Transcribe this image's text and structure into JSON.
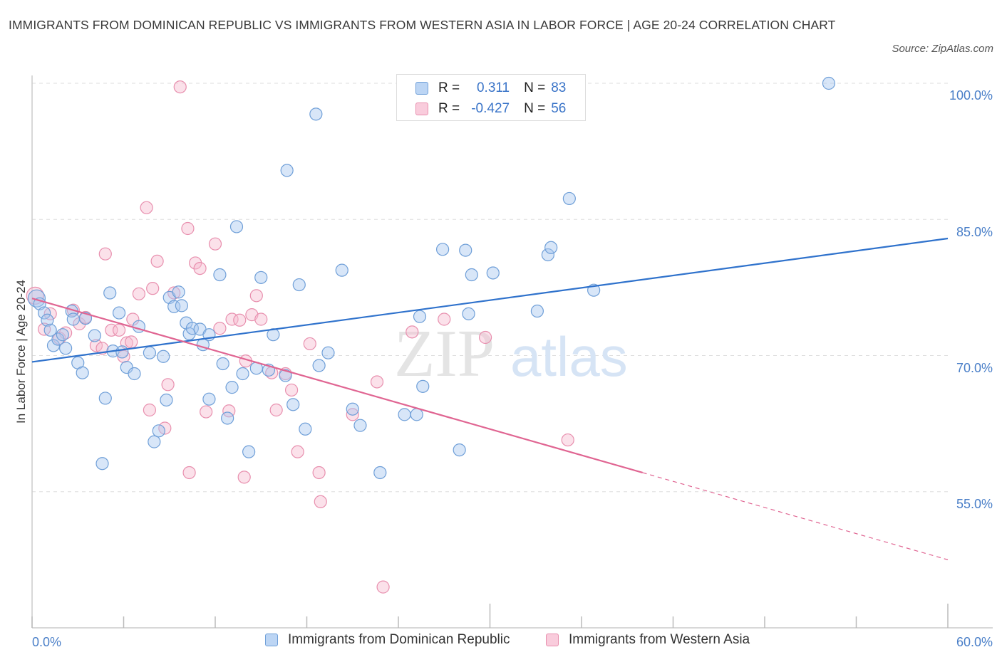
{
  "title": "IMMIGRANTS FROM DOMINICAN REPUBLIC VS IMMIGRANTS FROM WESTERN ASIA IN LABOR FORCE | AGE 20-24 CORRELATION CHART",
  "source": "Source: ZipAtlas.com",
  "watermark": {
    "zip": "ZIP",
    "atlas": "atlas"
  },
  "legend": {
    "r_label": "R =",
    "n_label": "N =",
    "series1": {
      "r": "0.311",
      "n": "83"
    },
    "series2": {
      "r": "-0.427",
      "n": "56"
    }
  },
  "colors": {
    "blue_fill": "#a9c8ef",
    "blue_stroke": "#6f9fd8",
    "blue_line": "#2f72cc",
    "pink_fill": "#f6bdd0",
    "pink_stroke": "#e88fae",
    "pink_line": "#e06592",
    "grid": "#dddddd",
    "axis_text": "#4a7fc8"
  },
  "chart_data": {
    "type": "scatter",
    "xlabel": "",
    "ylabel": "In Labor Force | Age 20-24",
    "xlim": [
      0,
      60
    ],
    "ylim": [
      40,
      100
    ],
    "x_tick_labels": [
      "0.0%",
      "60.0%"
    ],
    "y_tick_labels": [
      "100.0%",
      "85.0%",
      "70.0%",
      "55.0%"
    ],
    "y_ticks": [
      100,
      85,
      70,
      55
    ],
    "grid": true,
    "legend_position": "bottom",
    "series": [
      {
        "name": "Immigrants from Dominican Republic",
        "color": "blue",
        "trend": {
          "x0": 0,
          "y0": 69.3,
          "x1": 60,
          "y1": 82.9
        },
        "points": [
          [
            0.3,
            76.3
          ],
          [
            0.5,
            75.7
          ],
          [
            0.8,
            74.7
          ],
          [
            1.0,
            73.9
          ],
          [
            1.2,
            72.8
          ],
          [
            1.4,
            71.1
          ],
          [
            1.7,
            71.8
          ],
          [
            2.0,
            72.3
          ],
          [
            2.2,
            70.8
          ],
          [
            2.6,
            74.9
          ],
          [
            2.7,
            74.0
          ],
          [
            3.0,
            69.2
          ],
          [
            3.3,
            68.1
          ],
          [
            3.5,
            74.1
          ],
          [
            4.1,
            72.2
          ],
          [
            4.8,
            65.3
          ],
          [
            4.6,
            58.1
          ],
          [
            5.1,
            76.9
          ],
          [
            5.3,
            70.5
          ],
          [
            5.7,
            74.7
          ],
          [
            5.9,
            70.4
          ],
          [
            6.2,
            68.7
          ],
          [
            6.7,
            68.0
          ],
          [
            7.0,
            73.2
          ],
          [
            7.7,
            70.3
          ],
          [
            8.0,
            60.5
          ],
          [
            8.3,
            61.7
          ],
          [
            8.6,
            69.9
          ],
          [
            8.8,
            65.1
          ],
          [
            9.0,
            76.4
          ],
          [
            9.3,
            75.4
          ],
          [
            9.6,
            77.0
          ],
          [
            9.8,
            75.5
          ],
          [
            10.1,
            73.6
          ],
          [
            10.3,
            72.4
          ],
          [
            10.5,
            73.0
          ],
          [
            11.0,
            72.9
          ],
          [
            11.2,
            71.2
          ],
          [
            11.6,
            72.3
          ],
          [
            11.6,
            65.2
          ],
          [
            12.3,
            78.9
          ],
          [
            12.5,
            69.1
          ],
          [
            12.8,
            63.1
          ],
          [
            13.1,
            66.5
          ],
          [
            13.4,
            84.2
          ],
          [
            13.8,
            68.0
          ],
          [
            14.2,
            59.4
          ],
          [
            14.7,
            68.6
          ],
          [
            15.0,
            78.6
          ],
          [
            15.5,
            68.4
          ],
          [
            15.8,
            72.3
          ],
          [
            16.6,
            67.8
          ],
          [
            16.7,
            90.4
          ],
          [
            17.1,
            64.6
          ],
          [
            17.5,
            77.8
          ],
          [
            17.9,
            61.9
          ],
          [
            18.6,
            96.6
          ],
          [
            18.8,
            68.9
          ],
          [
            19.4,
            70.3
          ],
          [
            20.3,
            79.4
          ],
          [
            21.0,
            64.1
          ],
          [
            21.5,
            62.3
          ],
          [
            22.8,
            57.1
          ],
          [
            24.4,
            63.5
          ],
          [
            25.2,
            63.5
          ],
          [
            25.4,
            74.3
          ],
          [
            25.6,
            66.6
          ],
          [
            26.9,
            81.7
          ],
          [
            28.0,
            59.6
          ],
          [
            28.4,
            81.6
          ],
          [
            28.6,
            74.6
          ],
          [
            28.8,
            78.9
          ],
          [
            30.2,
            79.1
          ],
          [
            33.1,
            74.9
          ],
          [
            33.8,
            81.1
          ],
          [
            34.0,
            81.9
          ],
          [
            35.2,
            87.3
          ],
          [
            36.8,
            77.2
          ],
          [
            52.2,
            100.0
          ]
        ]
      },
      {
        "name": "Immigrants from Western Asia",
        "color": "pink",
        "trend": {
          "x0": 0,
          "y0": 76.3,
          "x1": 40,
          "y1": 57.1,
          "dash_to_x": 60,
          "dash_to_y": 47.5
        },
        "points": [
          [
            0.2,
            76.6
          ],
          [
            0.8,
            72.9
          ],
          [
            1.2,
            74.6
          ],
          [
            1.8,
            71.9
          ],
          [
            2.2,
            72.5
          ],
          [
            2.7,
            75.0
          ],
          [
            3.1,
            73.5
          ],
          [
            3.5,
            74.2
          ],
          [
            4.2,
            71.1
          ],
          [
            4.6,
            70.8
          ],
          [
            4.8,
            81.2
          ],
          [
            5.2,
            72.8
          ],
          [
            5.7,
            72.8
          ],
          [
            6.0,
            69.9
          ],
          [
            6.2,
            71.4
          ],
          [
            6.5,
            71.5
          ],
          [
            6.6,
            74.0
          ],
          [
            7.0,
            76.8
          ],
          [
            7.5,
            86.3
          ],
          [
            7.7,
            64.0
          ],
          [
            7.9,
            77.4
          ],
          [
            8.2,
            80.4
          ],
          [
            8.7,
            62.0
          ],
          [
            8.9,
            66.8
          ],
          [
            9.3,
            76.9
          ],
          [
            9.7,
            99.6
          ],
          [
            10.2,
            84.0
          ],
          [
            10.3,
            57.1
          ],
          [
            10.7,
            80.2
          ],
          [
            11.0,
            79.6
          ],
          [
            11.4,
            63.8
          ],
          [
            12.0,
            82.3
          ],
          [
            12.3,
            73.0
          ],
          [
            12.9,
            63.9
          ],
          [
            13.1,
            74.0
          ],
          [
            13.6,
            73.9
          ],
          [
            13.9,
            56.6
          ],
          [
            14.0,
            69.4
          ],
          [
            14.4,
            74.5
          ],
          [
            14.7,
            76.6
          ],
          [
            15.0,
            74.0
          ],
          [
            15.7,
            68.1
          ],
          [
            16.0,
            64.0
          ],
          [
            16.6,
            68.0
          ],
          [
            17.0,
            66.2
          ],
          [
            17.4,
            59.4
          ],
          [
            18.2,
            71.3
          ],
          [
            18.8,
            57.1
          ],
          [
            18.9,
            53.9
          ],
          [
            21.0,
            63.5
          ],
          [
            22.6,
            67.1
          ],
          [
            23.0,
            44.5
          ],
          [
            24.9,
            72.6
          ],
          [
            29.7,
            72.0
          ],
          [
            35.1,
            60.7
          ],
          [
            27.0,
            74.0
          ]
        ]
      }
    ]
  },
  "axis_labels": {
    "x_left": "0.0%",
    "x_right": "60.0%",
    "y_100": "100.0%",
    "y_85": "85.0%",
    "y_70": "70.0%",
    "y_55": "55.0%"
  }
}
